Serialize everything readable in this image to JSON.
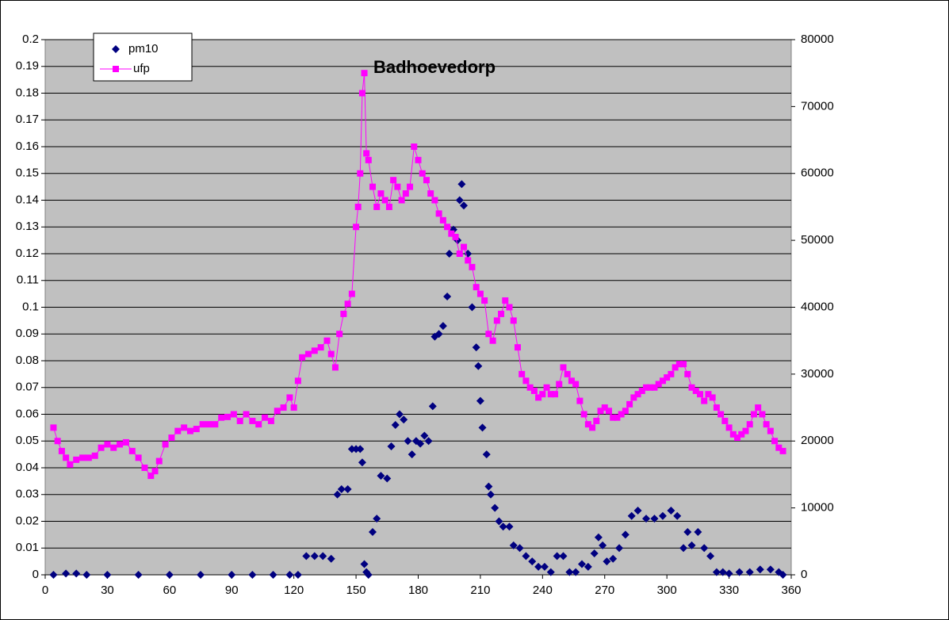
{
  "chart_data": {
    "type": "scatter",
    "title": "Badhoevedorp",
    "xlim": [
      0,
      360
    ],
    "xticks": [
      0,
      30,
      60,
      90,
      120,
      150,
      180,
      210,
      240,
      270,
      300,
      330,
      360
    ],
    "ylim": [
      0,
      0.2
    ],
    "yticks": [
      0,
      0.01,
      0.02,
      0.03,
      0.04,
      0.05,
      0.06,
      0.07,
      0.08,
      0.09,
      0.1,
      0.11,
      0.12,
      0.13,
      0.14,
      0.15,
      0.16,
      0.17,
      0.18,
      0.19,
      0.2
    ],
    "y2lim": [
      0,
      80000
    ],
    "y2ticks": [
      0,
      10000,
      20000,
      30000,
      40000,
      50000,
      60000,
      70000,
      80000
    ],
    "grid": true,
    "legend": "upper left",
    "series": [
      {
        "name": "pm10",
        "color": "#000080",
        "marker": "diamond",
        "x": [
          4,
          10,
          15,
          20,
          30,
          45,
          60,
          75,
          90,
          100,
          110,
          118,
          122,
          126,
          130,
          134,
          138,
          141,
          143,
          146,
          148,
          150,
          152,
          153,
          154,
          155,
          156,
          158,
          160,
          162,
          165,
          167,
          169,
          171,
          173,
          175,
          177,
          179,
          181,
          183,
          185,
          187,
          188,
          190,
          192,
          194,
          195,
          197,
          199,
          200,
          201,
          202,
          204,
          206,
          208,
          209,
          210,
          211,
          213,
          214,
          215,
          217,
          219,
          221,
          224,
          226,
          229,
          232,
          235,
          238,
          241,
          244,
          247,
          250,
          253,
          256,
          259,
          262,
          265,
          267,
          269,
          271,
          274,
          277,
          280,
          283,
          286,
          290,
          294,
          298,
          302,
          305,
          308,
          310,
          312,
          315,
          318,
          321,
          324,
          327,
          330,
          335,
          340,
          345,
          350,
          354,
          356
        ],
        "values": [
          0,
          0.0005,
          0.0005,
          0,
          0,
          0,
          0,
          0,
          0,
          0,
          0,
          0,
          0,
          0.007,
          0.007,
          0.007,
          0.006,
          0.03,
          0.032,
          0.032,
          0.047,
          0.047,
          0.047,
          0.042,
          0.004,
          0.001,
          0,
          0.016,
          0.021,
          0.037,
          0.036,
          0.048,
          0.056,
          0.06,
          0.058,
          0.05,
          0.045,
          0.05,
          0.049,
          0.052,
          0.05,
          0.063,
          0.089,
          0.09,
          0.093,
          0.104,
          0.12,
          0.129,
          0.125,
          0.14,
          0.146,
          0.138,
          0.12,
          0.1,
          0.085,
          0.078,
          0.065,
          0.055,
          0.045,
          0.033,
          0.03,
          0.025,
          0.02,
          0.018,
          0.018,
          0.011,
          0.01,
          0.007,
          0.005,
          0.003,
          0.003,
          0.001,
          0.007,
          0.007,
          0.001,
          0.001,
          0.004,
          0.003,
          0.008,
          0.014,
          0.011,
          0.005,
          0.006,
          0.01,
          0.015,
          0.022,
          0.024,
          0.021,
          0.021,
          0.022,
          0.024,
          0.022,
          0.01,
          0.016,
          0.011,
          0.016,
          0.01,
          0.007,
          0.001,
          0.001,
          0.0005,
          0.001,
          0.001,
          0.002,
          0.002,
          0.001,
          0
        ]
      },
      {
        "name": "ufp",
        "color": "#ff00ff",
        "marker": "square",
        "axis": "y2",
        "line": true,
        "x": [
          4,
          6,
          8,
          10,
          12,
          15,
          18,
          21,
          24,
          27,
          30,
          33,
          36,
          39,
          42,
          45,
          48,
          51,
          53,
          55,
          58,
          61,
          64,
          67,
          70,
          73,
          76,
          79,
          82,
          85,
          88,
          91,
          94,
          97,
          100,
          103,
          106,
          109,
          112,
          115,
          118,
          120,
          122,
          124,
          127,
          130,
          133,
          136,
          138,
          140,
          142,
          144,
          146,
          148,
          150,
          151,
          152,
          153,
          154,
          155,
          156,
          158,
          160,
          162,
          164,
          166,
          168,
          170,
          172,
          174,
          176,
          178,
          180,
          182,
          184,
          186,
          188,
          190,
          192,
          194,
          196,
          198,
          200,
          202,
          204,
          206,
          208,
          210,
          212,
          214,
          216,
          218,
          220,
          222,
          224,
          226,
          228,
          230,
          232,
          234,
          236,
          238,
          240,
          242,
          244,
          246,
          248,
          250,
          252,
          254,
          256,
          258,
          260,
          262,
          264,
          266,
          268,
          270,
          272,
          274,
          276,
          278,
          280,
          282,
          284,
          286,
          288,
          290,
          292,
          294,
          296,
          298,
          300,
          302,
          304,
          306,
          308,
          310,
          312,
          314,
          316,
          318,
          320,
          322,
          324,
          326,
          328,
          330,
          332,
          334,
          336,
          338,
          340,
          342,
          344,
          346,
          348,
          350,
          352,
          354,
          356
        ],
        "values": [
          22000,
          20000,
          18500,
          17500,
          16500,
          17200,
          17500,
          17500,
          17800,
          19000,
          19500,
          19000,
          19500,
          19800,
          18500,
          17500,
          16000,
          14800,
          15500,
          17000,
          19500,
          20500,
          21500,
          22000,
          21500,
          21800,
          22500,
          22500,
          22500,
          23500,
          23600,
          24000,
          23000,
          24000,
          23000,
          22500,
          23500,
          23000,
          24500,
          25000,
          26500,
          25000,
          29000,
          32500,
          33000,
          33500,
          34000,
          35000,
          33000,
          31000,
          36000,
          39000,
          40500,
          42000,
          52000,
          55000,
          60000,
          72000,
          75000,
          63000,
          62000,
          58000,
          55000,
          57000,
          56000,
          55000,
          59000,
          58000,
          56000,
          57000,
          58000,
          64000,
          62000,
          60000,
          59000,
          57000,
          56000,
          54000,
          53000,
          52000,
          51000,
          50500,
          48000,
          49000,
          47000,
          46000,
          43000,
          42000,
          41000,
          36000,
          35000,
          38000,
          39000,
          41000,
          40000,
          38000,
          34000,
          30000,
          29000,
          28000,
          27500,
          26500,
          27000,
          28000,
          27000,
          27000,
          28500,
          31000,
          30000,
          29000,
          28500,
          26000,
          24000,
          22500,
          22000,
          23000,
          24500,
          25000,
          24500,
          23500,
          23500,
          24000,
          24500,
          25500,
          26500,
          27000,
          27500,
          28000,
          28000,
          28000,
          28500,
          29000,
          29500,
          30000,
          31000,
          31500,
          31500,
          30000,
          28000,
          27500,
          27000,
          26000,
          27000,
          26500,
          25000,
          24000,
          23000,
          22000,
          21000,
          20500,
          21000,
          21500,
          22500,
          24000,
          25000,
          24000,
          22500,
          21500,
          20000,
          19000,
          18500
        ]
      }
    ]
  }
}
